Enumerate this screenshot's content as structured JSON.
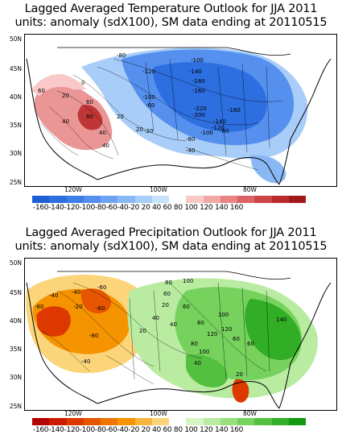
{
  "temperature": {
    "title": "Lagged Averaged Temperature Outlook for JJA 2011",
    "subtitle": "units: anomaly (sdX100), SM data ending at 20110515",
    "lat_ticks": [
      "50N",
      "45N",
      "40N",
      "35N",
      "30N",
      "25N"
    ],
    "lon_ticks": [
      "120W",
      "100W",
      "80W"
    ],
    "colorbar": {
      "labels": "-160-140-120-100-80-60-40-20 20  40  60  80 100 120 140 160",
      "colors": [
        "#1f5fd6",
        "#2d6ee0",
        "#3d7ee8",
        "#5590ee",
        "#6ea3f2",
        "#8ab8f5",
        "#a8cdf8",
        "#c7e2fb",
        "#ffffff",
        "#f9c8c8",
        "#f2a6a6",
        "#e88484",
        "#dc6363",
        "#cd4444",
        "#bb2b2b",
        "#a01818"
      ]
    },
    "contour_labels": [
      "-80",
      "-100",
      "-120",
      "-140",
      "-180",
      "-160",
      "-100",
      "-60",
      "-220",
      "-160",
      "-200",
      "-140",
      "-120",
      "-100",
      "-80",
      "-60",
      "-40",
      "-20",
      "60",
      "20",
      "40",
      "60",
      "80",
      "40",
      "20",
      "0",
      "20",
      "40"
    ]
  },
  "precipitation": {
    "title": "Lagged Averaged Precipitation Outlook for JJA 2011",
    "subtitle": "units: anomaly (sdX100), SM data ending at 20110515",
    "lat_ticks": [
      "50N",
      "45N",
      "40N",
      "35N",
      "30N",
      "25N"
    ],
    "lon_ticks": [
      "120W",
      "100W",
      "80W"
    ],
    "colorbar": {
      "labels": "-160-140-120-100-80-60-40-20 20  40  60  80 100 120 140 160",
      "colors": [
        "#b30000",
        "#cc1a00",
        "#dd3800",
        "#e85500",
        "#f07400",
        "#f59400",
        "#f9b43a",
        "#fcd57a",
        "#ffffff",
        "#d8f5c6",
        "#b9eca1",
        "#98e07e",
        "#76d15d",
        "#54c040",
        "#32ad26",
        "#139812"
      ]
    },
    "contour_labels": [
      "-60",
      "-40",
      "-80",
      "-40",
      "-20",
      "-60",
      "-80",
      "-40",
      "80",
      "100",
      "60",
      "20",
      "40",
      "60",
      "80",
      "100",
      "120",
      "140",
      "60",
      "40",
      "20",
      "80",
      "100",
      "40",
      "20",
      "60",
      "120"
    ]
  }
}
